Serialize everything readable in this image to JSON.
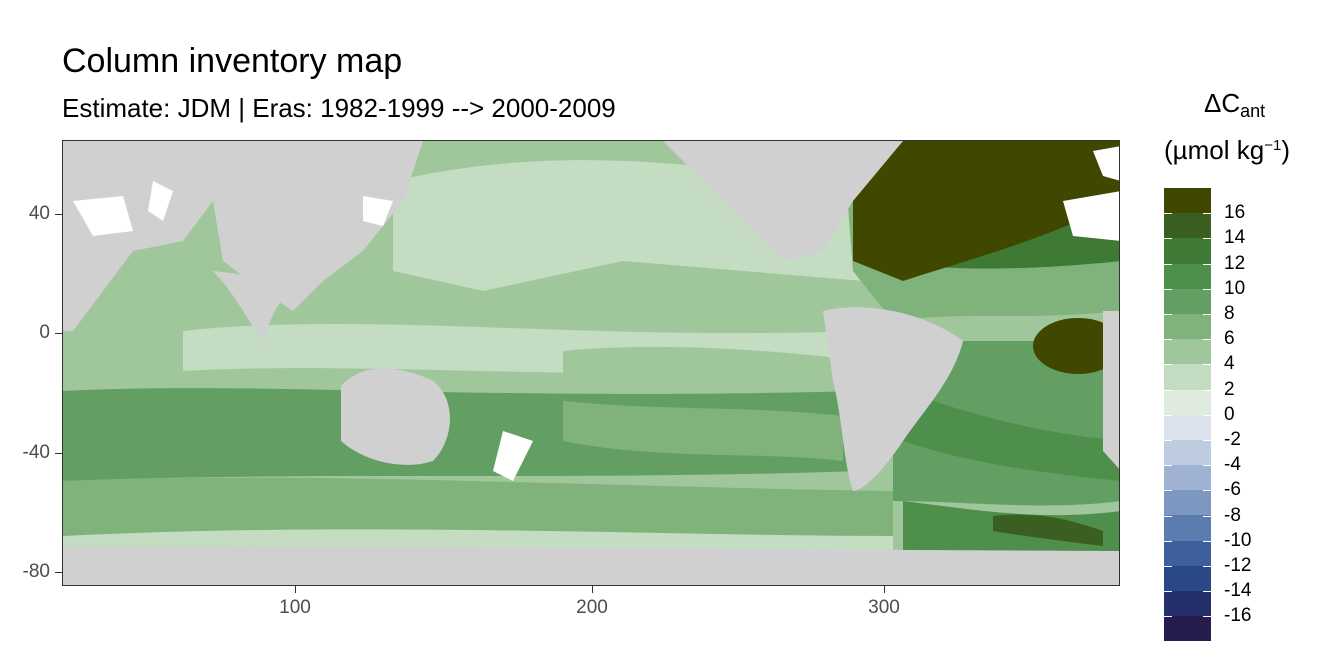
{
  "title": "Column inventory map",
  "subtitle": "Estimate: JDM  | Eras: 1982-1999 --> 2000-2009",
  "legend": {
    "title_main": "ΔC",
    "title_sub": "ant",
    "unit_open": "(µmol kg",
    "unit_sup": "−1",
    "unit_close": ")",
    "colors": [
      "#404800",
      "#3a5f20",
      "#3e7a34",
      "#4e8f4c",
      "#639f62",
      "#80b27c",
      "#a0c79b",
      "#c3dcc2",
      "#e0ebe0",
      "#dde3ec",
      "#bfcbe0",
      "#9fb2d1",
      "#7d98c0",
      "#5a7cae",
      "#3d609c",
      "#2a4886",
      "#252f6a",
      "#261d4e"
    ],
    "labels": [
      "16",
      "14",
      "12",
      "10",
      "8",
      "6",
      "4",
      "2",
      "0",
      "-2",
      "-4",
      "-6",
      "-8",
      "-10",
      "-12",
      "-14",
      "-16"
    ]
  },
  "axes": {
    "x_ticks": [
      "100",
      "200",
      "300"
    ],
    "y_ticks": [
      "40",
      "0",
      "-40",
      "-80"
    ]
  },
  "colors": {
    "land": "#d0d0d0",
    "ice_nodata": "#ffffff",
    "ocean_low": "#c3dcc2",
    "ocean_mid": "#a0c79b",
    "ocean_high": "#639f62",
    "ocean_max": "#404800"
  }
}
